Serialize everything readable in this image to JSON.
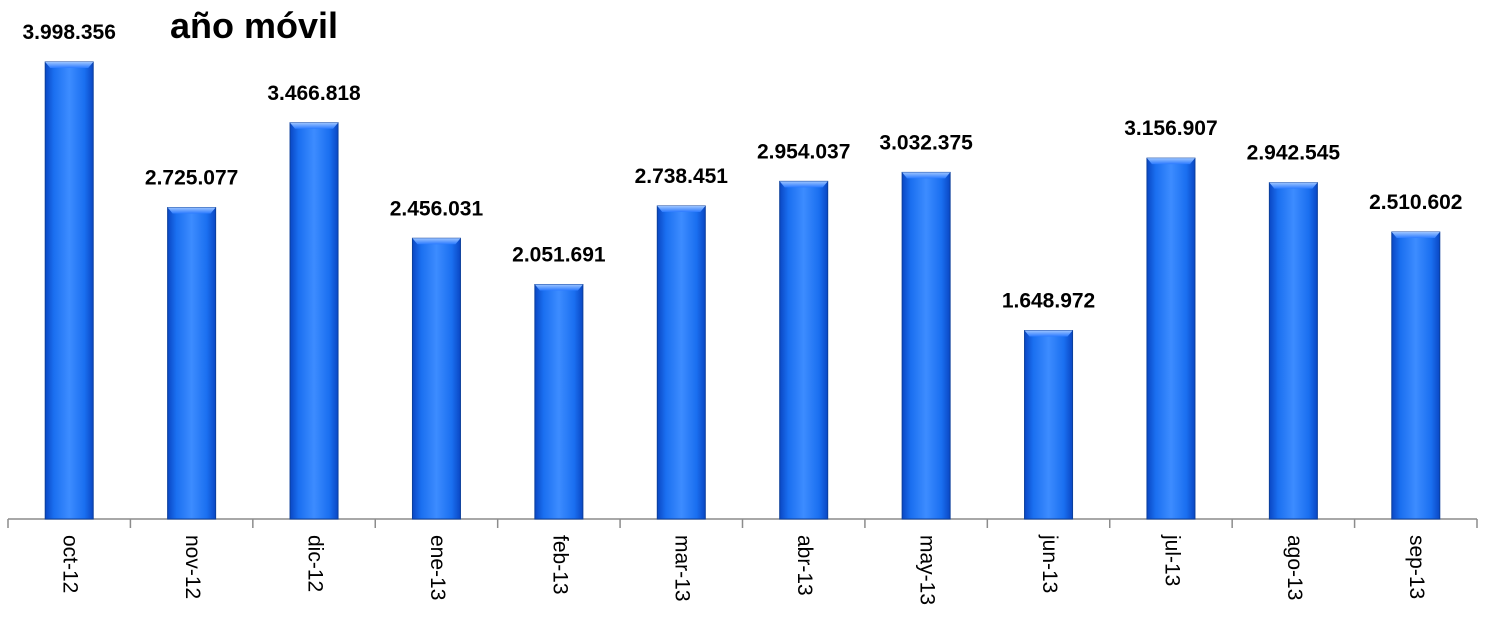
{
  "chart_data": {
    "type": "bar",
    "title": "año móvil",
    "xlabel": "",
    "ylabel": "",
    "ylim": [
      0,
      4150000
    ],
    "grid": false,
    "legend": "none",
    "bar_color": "#1366e6",
    "bar_edge_color": "#0b3f9c",
    "categories": [
      "oct-12",
      "nov-12",
      "dic-12",
      "ene-13",
      "feb-13",
      "mar-13",
      "abr-13",
      "may-13",
      "jun-13",
      "jul-13",
      "ago-13",
      "sep-13"
    ],
    "values": [
      3998356,
      2725077,
      3466818,
      2456031,
      2051691,
      2738451,
      2954037,
      3032375,
      1648972,
      3156907,
      2942545,
      2510602
    ],
    "data_labels": [
      "3.998.356",
      "2.725.077",
      "3.466.818",
      "2.456.031",
      "2.051.691",
      "2.738.451",
      "2.954.037",
      "3.032.375",
      "1.648.972",
      "3.156.907",
      "2.942.545",
      "2.510.602"
    ]
  }
}
